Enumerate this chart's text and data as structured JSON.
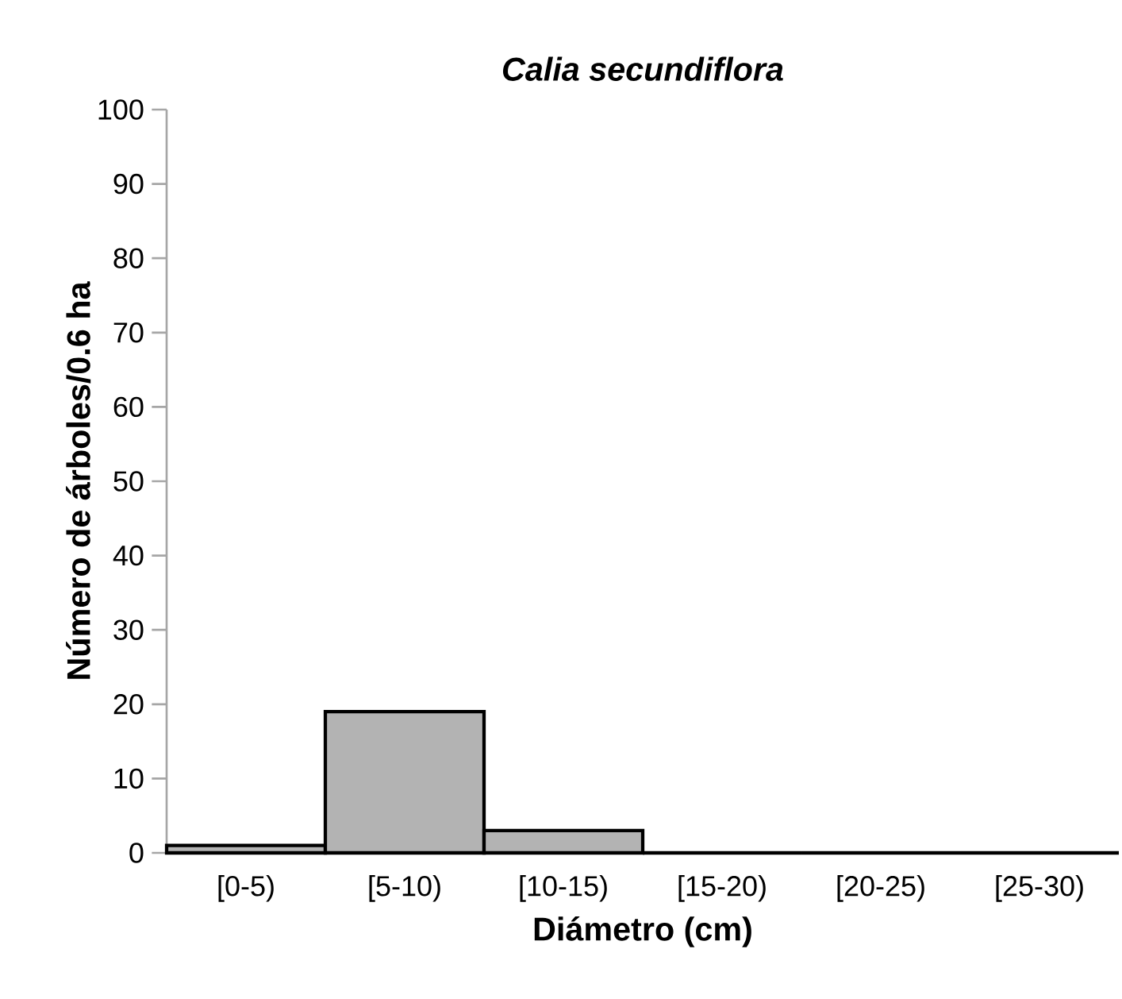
{
  "chart_data": {
    "type": "bar",
    "title": "Calia secundiflora",
    "xlabel": "Diámetro (cm)",
    "ylabel": "Número de árboles/0.6 ha",
    "categories": [
      "[0-5)",
      "[5-10)",
      "[10-15)",
      "[15-20)",
      "[20-25)",
      "[25-30)"
    ],
    "values": [
      1,
      19,
      3,
      0,
      0,
      0
    ],
    "color": "#b3b3b3",
    "ylim": [
      0,
      100
    ],
    "yticks": [
      0,
      10,
      20,
      30,
      40,
      50,
      60,
      70,
      80,
      90,
      100
    ],
    "grid": false
  }
}
